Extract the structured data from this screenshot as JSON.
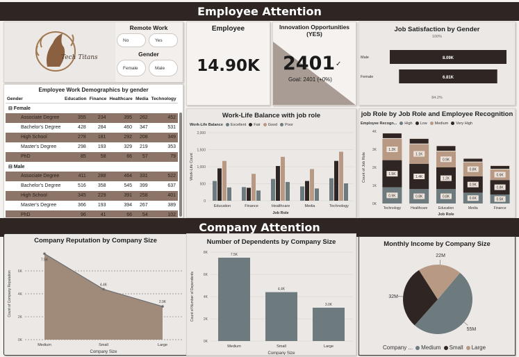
{
  "header_top": "Employee Attention",
  "header_bottom": "Company Attention",
  "logo": {
    "text": "Tech Titans"
  },
  "slicers": {
    "remote_title": "Remote Work",
    "remote_options": [
      "No",
      "Yes"
    ],
    "gender_title": "Gender",
    "gender_options": [
      "Female",
      "Male"
    ]
  },
  "kpi_employee": {
    "title": "Employee",
    "value": "14.90K"
  },
  "kpi_innovation": {
    "title": "Innovation Opportunities (YES)",
    "value": "2401",
    "goal": "Goal: 2401 (+0%)"
  },
  "demographics": {
    "title": "Employee Work Demographics by gender",
    "headers": [
      "Gender",
      "Education",
      "Finance",
      "Healthcare",
      "Media",
      "Technology"
    ],
    "groups": [
      {
        "name": "Female",
        "rows": [
          {
            "label": "Associate Degree",
            "values": [
              "355",
              "234",
              "395",
              "262",
              "452"
            ]
          },
          {
            "label": "Bachelor's Degree",
            "values": [
              "428",
              "284",
              "460",
              "347",
              "531"
            ]
          },
          {
            "label": "High School",
            "values": [
              "278",
              "181",
              "292",
              "208",
              "349"
            ]
          },
          {
            "label": "Master's Degree",
            "values": [
              "298",
              "193",
              "329",
              "219",
              "353"
            ]
          },
          {
            "label": "PhD",
            "values": [
              "85",
              "58",
              "66",
              "57",
              "79"
            ]
          }
        ]
      },
      {
        "name": "Male",
        "rows": [
          {
            "label": "Associate Degree",
            "values": [
              "411",
              "288",
              "464",
              "331",
              "522"
            ]
          },
          {
            "label": "Bachelor's Degree",
            "values": [
              "516",
              "358",
              "545",
              "399",
              "637"
            ]
          },
          {
            "label": "High School",
            "values": [
              "345",
              "229",
              "391",
              "258",
              "401"
            ]
          },
          {
            "label": "Master's Degree",
            "values": [
              "366",
              "193",
              "394",
              "267",
              "389"
            ]
          },
          {
            "label": "PhD",
            "values": [
              "96",
              "41",
              "66",
              "54",
              "102"
            ]
          }
        ]
      }
    ]
  },
  "job_satisfaction": {
    "title": "Job Satisfaction by Gender",
    "top_label": "100%",
    "bottom_label": "84.2%"
  },
  "work_life": {
    "title": "Work-Life Balance with job role",
    "legend_title": "Work-Life Balance"
  },
  "job_role": {
    "title": "job Role by Job Role and Employee Recognition",
    "legend_title": "Employee Recogn..."
  },
  "reputation": {
    "title": "Company Reputation by Company Size"
  },
  "dependents": {
    "title": "Number of Dependents by Company Size"
  },
  "income": {
    "title": "Monthly Income by Company Size",
    "legend_title": "Company ..."
  },
  "colors": {
    "dark": "#2f2624",
    "tan": "#b89a84",
    "slate": "#6d7b7e",
    "light": "#ede3da"
  },
  "chart_data": [
    {
      "type": "bar",
      "title": "Job Satisfaction by Gender",
      "categories": [
        "Male",
        "Female"
      ],
      "values": [
        8.09,
        6.81
      ],
      "data_labels": [
        "8.09K",
        "6.81K"
      ]
    },
    {
      "type": "bar",
      "title": "Work-Life Balance with job role",
      "xlabel": "Job Role",
      "ylabel": "Work-Life Count",
      "categories": [
        "Education",
        "Finance",
        "Healthcare",
        "Media",
        "Technology"
      ],
      "ylim": [
        0,
        2000
      ],
      "yticks": [
        "0",
        "500",
        "1,000",
        "1,500",
        "2,000"
      ],
      "series": [
        {
          "name": "Excellent",
          "values": [
            580,
            400,
            640,
            420,
            660
          ],
          "color": "#6d7b7e"
        },
        {
          "name": "Fair",
          "values": [
            950,
            380,
            1020,
            580,
            1170
          ],
          "color": "#2f2624"
        },
        {
          "name": "Good",
          "values": [
            1170,
            790,
            1290,
            930,
            1440
          ],
          "color": "#b89a84"
        },
        {
          "name": "Poor",
          "values": [
            390,
            300,
            550,
            360,
            510
          ],
          "color": "#6d7b7e"
        }
      ]
    },
    {
      "type": "bar",
      "title": "job Role by Job Role and Employee Recognition",
      "xlabel": "Job Role",
      "ylabel": "Count of Job Role",
      "categories": [
        "Technology",
        "Healthcare",
        "Education",
        "Media",
        "Finance"
      ],
      "ylim": [
        0,
        4000
      ],
      "yticks": [
        "0K",
        "1K",
        "2K",
        "3K",
        "4K"
      ],
      "series": [
        {
          "name": "High",
          "values": [
            0.9,
            0.8,
            0.8,
            0.6,
            0.5
          ],
          "labels": [
            "0.9K",
            "0.8K",
            "0.8K",
            "0.6K",
            "0.5K"
          ]
        },
        {
          "name": "Low",
          "values": [
            1.5,
            1.4,
            1.2,
            0.9,
            0.8
          ],
          "labels": [
            "1.5K",
            "1.4K",
            "1.2K",
            "0.9K",
            "0.8K"
          ]
        },
        {
          "name": "Medium",
          "values": [
            1.2,
            1.1,
            0.9,
            0.8,
            0.6
          ],
          "labels": [
            "1.2K",
            "1.1K",
            "0.9K",
            "0.8K",
            "0.6K"
          ]
        },
        {
          "name": "Very High",
          "values": [
            0.3,
            0.3,
            0.3,
            0.2,
            0.2
          ],
          "labels": [
            "",
            "",
            "",
            "",
            ""
          ]
        }
      ]
    },
    {
      "type": "area",
      "title": "Company Reputation by Company Size",
      "xlabel": "Company Size",
      "ylabel": "Count of Company Reputation",
      "categories": [
        "Medium",
        "Small",
        "Large"
      ],
      "values": [
        7.5,
        4.4,
        2.9
      ],
      "data_labels": [
        "7.5K",
        "4.4K",
        "2.9K"
      ],
      "ylim": [
        0,
        8
      ],
      "yticks": [
        "0K",
        "2K",
        "4K",
        "6K"
      ]
    },
    {
      "type": "bar",
      "title": "Number of Dependents by Company Size",
      "xlabel": "Company Size",
      "ylabel": "Count of Number of Dependents",
      "categories": [
        "Medium",
        "Small",
        "Large"
      ],
      "values": [
        7.5,
        4.4,
        3.0
      ],
      "data_labels": [
        "7.5K",
        "4.4K",
        "3.0K"
      ],
      "ylim": [
        0,
        8
      ],
      "yticks": [
        "0K",
        "2K",
        "4K",
        "6K",
        "8K"
      ]
    },
    {
      "type": "pie",
      "title": "Monthly Income by Company Size",
      "categories": [
        "Medium",
        "Small",
        "Large"
      ],
      "values": [
        55,
        32,
        22
      ],
      "data_labels": [
        "55M",
        "32M",
        "22M"
      ]
    }
  ]
}
